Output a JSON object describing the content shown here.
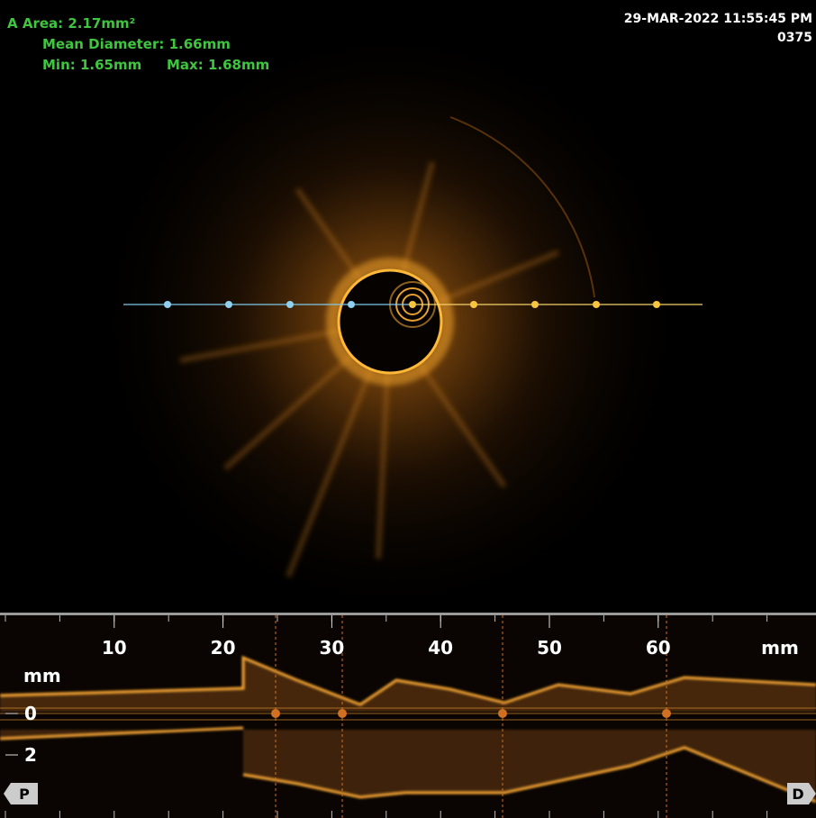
{
  "overlay": {
    "area": "A Area: 2.17mm²",
    "mean_diameter": "Mean Diameter: 1.66mm",
    "min": "Min: 1.65mm",
    "max": "Max: 1.68mm",
    "timestamp": "29-MAR-2022 11:55:45 PM",
    "frame": "0375"
  },
  "longitudinal": {
    "length_ticks": [
      10,
      20,
      30,
      40,
      50,
      60
    ],
    "length_unit": "mm",
    "depth_unit": "mm",
    "depth_ticks": [
      0,
      2
    ],
    "proximal": "P",
    "distal": "D"
  }
}
